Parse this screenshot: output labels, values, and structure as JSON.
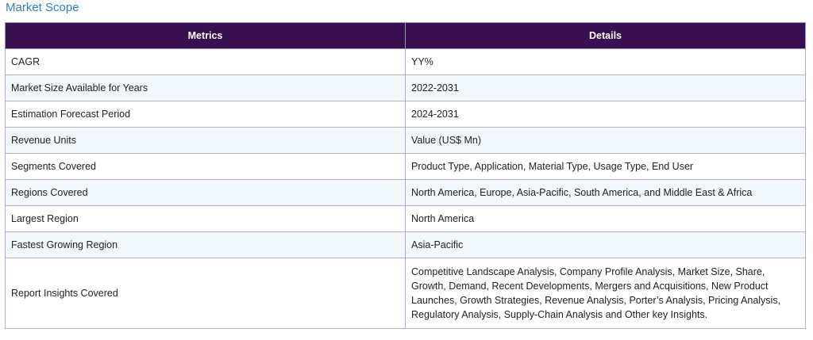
{
  "heading": "Market Scope",
  "table": {
    "headers": [
      "Metrics",
      "Details"
    ],
    "rows": [
      {
        "metric": "CAGR",
        "details": "YY%"
      },
      {
        "metric": "Market Size Available for Years",
        "details": "2022-2031"
      },
      {
        "metric": "Estimation Forecast Period",
        "details": "2024-2031"
      },
      {
        "metric": "Revenue Units",
        "details": "Value (US$ Mn)"
      },
      {
        "metric": "Segments Covered",
        "details": "Product Type, Application, Material Type, Usage Type, End User"
      },
      {
        "metric": "Regions Covered",
        "details": "North America, Europe, Asia-Pacific, South America, and Middle East & Africa"
      },
      {
        "metric": "Largest Region",
        "details": "North America"
      },
      {
        "metric": "Fastest Growing Region",
        "details": "Asia-Pacific"
      },
      {
        "metric": "Report Insights Covered",
        "details": "Competitive Landscape Analysis, Company Profile Analysis, Market Size, Share, Growth, Demand, Recent Developments, Mergers and Acquisitions, New Product Launches, Growth Strategies, Revenue Analysis, Porter’s Analysis, Pricing Analysis, Regulatory Analysis, Supply-Chain Analysis and Other key Insights."
      }
    ]
  },
  "colors": {
    "heading": "#2d7fc1",
    "header_bg": "#3a0f4f",
    "row_alt_bg": "#f1f7fb",
    "border": "#b8b0c6"
  }
}
